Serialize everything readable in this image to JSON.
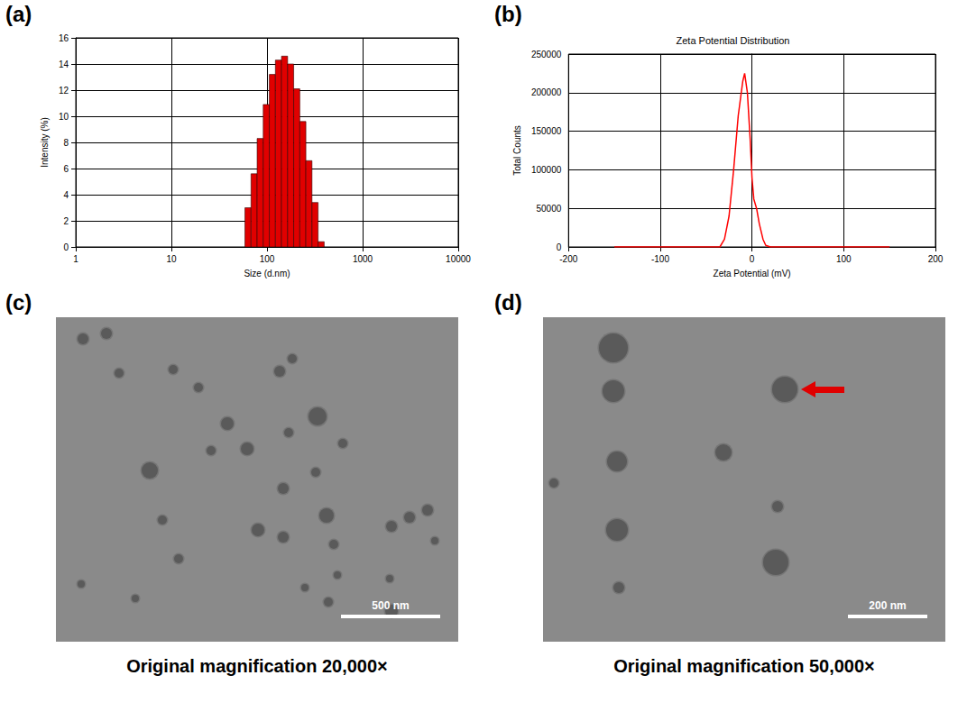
{
  "chart_data": [
    {
      "panel_label": "(a)",
      "type": "histogram",
      "x_label": "Size (d.nm)",
      "y_label": "Intensity (%)",
      "bins": [
        58.77,
        68.06,
        78.82,
        91.28,
        105.7,
        122.4,
        141.8,
        164.2,
        190.1,
        220.2,
        255.0,
        295.3,
        342.0,
        396.1
      ],
      "values": [
        3.0,
        5.6,
        8.3,
        10.9,
        13.2,
        14.3,
        14.6,
        14.0,
        12.1,
        9.6,
        6.6,
        3.4,
        0.4
      ],
      "color": "#e00000",
      "log": "x",
      "xlim": [
        1,
        10000
      ],
      "xticks": [
        1,
        10,
        100,
        1000,
        10000
      ],
      "ylim": [
        0,
        16
      ],
      "yticks": [
        0,
        2,
        4,
        6,
        8,
        10,
        12,
        14,
        16
      ],
      "grid": true
    },
    {
      "panel_label": "(b)",
      "type": "line",
      "title": "Zeta Potential Distribution",
      "x_label": "Zeta Potential (mV)",
      "y_label": "Total Counts",
      "x": [
        -150,
        -60,
        -35,
        -30,
        -25,
        -20,
        -15,
        -10,
        -8,
        -5,
        -2,
        0,
        2,
        5,
        8,
        12,
        15,
        20,
        60,
        150
      ],
      "values": [
        0,
        0,
        0,
        10000,
        40000,
        100000,
        170000,
        215000,
        225000,
        200000,
        140000,
        90000,
        62000,
        50000,
        30000,
        10000,
        2000,
        0,
        0,
        0
      ],
      "color": "#ff0000",
      "xlim": [
        -200,
        200
      ],
      "xticks": [
        -200,
        -100,
        0,
        100,
        200
      ],
      "ylim": [
        0,
        250000
      ],
      "yticks": [
        0,
        50000,
        100000,
        150000,
        200000,
        250000
      ],
      "grid": true
    }
  ],
  "micrographs": [
    {
      "panel_label": "(c)",
      "scale_bar": "500 nm",
      "caption": "Original magnification 20,000×"
    },
    {
      "panel_label": "(d)",
      "scale_bar": "200 nm",
      "caption": "Original magnification 50,000×"
    }
  ]
}
